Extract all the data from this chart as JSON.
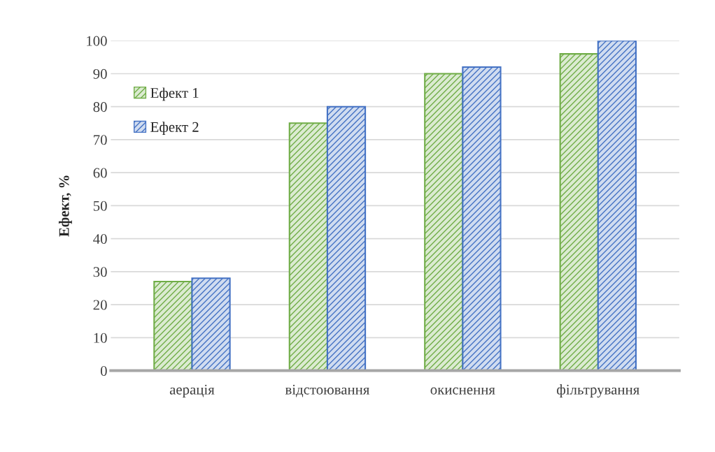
{
  "chart_data": {
    "type": "bar",
    "ylabel": "Ефект, %",
    "categories": [
      "аерація",
      "відстоювання",
      "окиснення",
      "фільтрування"
    ],
    "series": [
      {
        "name": "Ефект 1",
        "color": "#70ad47",
        "values": [
          27,
          75,
          90,
          96
        ]
      },
      {
        "name": "Ефект 2",
        "color": "#4472c4",
        "values": [
          28,
          80,
          92,
          100
        ]
      }
    ],
    "ylim": [
      0,
      100
    ],
    "yticks": [
      0,
      10,
      20,
      30,
      40,
      50,
      60,
      70,
      80,
      90,
      100
    ],
    "grid": "y",
    "legend": "top left"
  }
}
